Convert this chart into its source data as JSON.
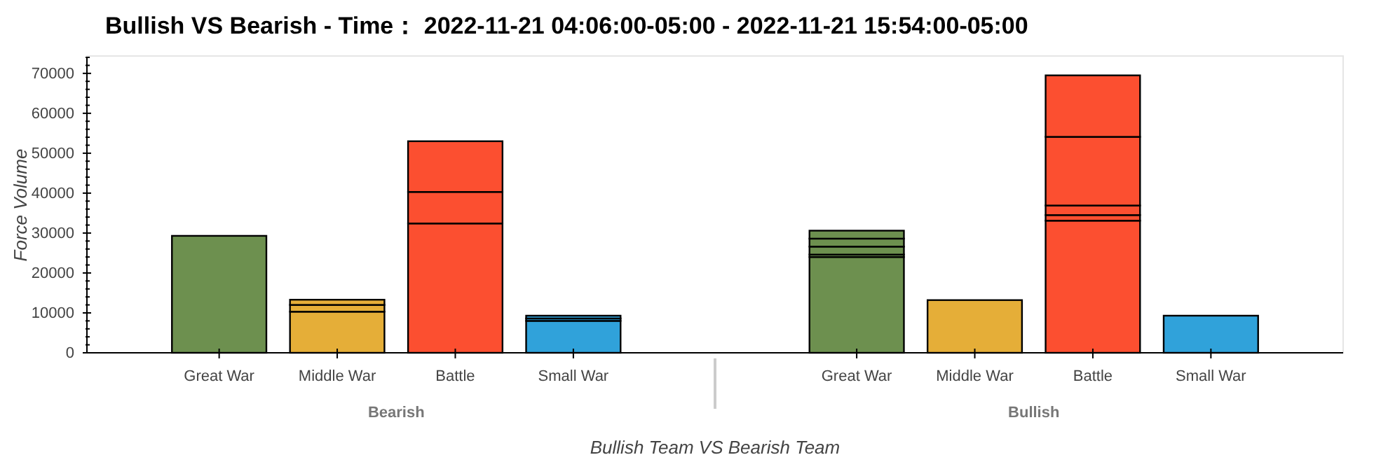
{
  "chart_data": {
    "type": "bar",
    "title": "Bullish VS Bearish - Time： 2022-11-21 04:06:00-05:00 - 2022-11-21 15:54:00-05:00",
    "xlabel": "Bullish Team VS Bearish Team",
    "ylabel": "Force Volume",
    "categories": [
      "Great War",
      "Middle War",
      "Battle",
      "Small War",
      "Great War",
      "Middle War",
      "Battle",
      "Small War"
    ],
    "annotations": [
      "Bearish",
      "Bullish"
    ],
    "stacked": true,
    "ylim": [
      0,
      74000
    ],
    "yticks": [
      0,
      10000,
      20000,
      30000,
      40000,
      50000,
      60000,
      70000
    ],
    "grid": false,
    "series": [
      {
        "colors": [
          "#6d904f",
          "#e5ae38",
          "#fc4f30",
          "#30a2da",
          "#6d904f",
          "#e5ae38",
          "#fc4f30",
          "#30a2da"
        ],
        "values": [
          29300,
          10300,
          32400,
          8000,
          24000,
          13200,
          33100,
          9300
        ]
      },
      {
        "colors": [
          null,
          "#e5ae38",
          "#fc4f30",
          "#30a2da",
          "#6d904f",
          null,
          "#fc4f30",
          null
        ],
        "values": [
          null,
          1700,
          7900,
          600,
          600,
          null,
          1400,
          null
        ]
      },
      {
        "colors": [
          null,
          "#e5ae38",
          "#fc4f30",
          "#30a2da",
          "#6d904f",
          null,
          "#fc4f30",
          null
        ],
        "values": [
          null,
          1300,
          12700,
          700,
          2000,
          null,
          2400,
          null
        ]
      },
      {
        "colors": [
          null,
          null,
          null,
          null,
          "#6d904f",
          null,
          "#fc4f30",
          null
        ],
        "values": [
          null,
          null,
          null,
          null,
          2000,
          null,
          17200,
          null
        ]
      },
      {
        "colors": [
          null,
          null,
          null,
          null,
          "#6d904f",
          null,
          "#fc4f30",
          null
        ],
        "values": [
          null,
          null,
          null,
          null,
          2000,
          null,
          15400,
          null
        ]
      }
    ]
  }
}
